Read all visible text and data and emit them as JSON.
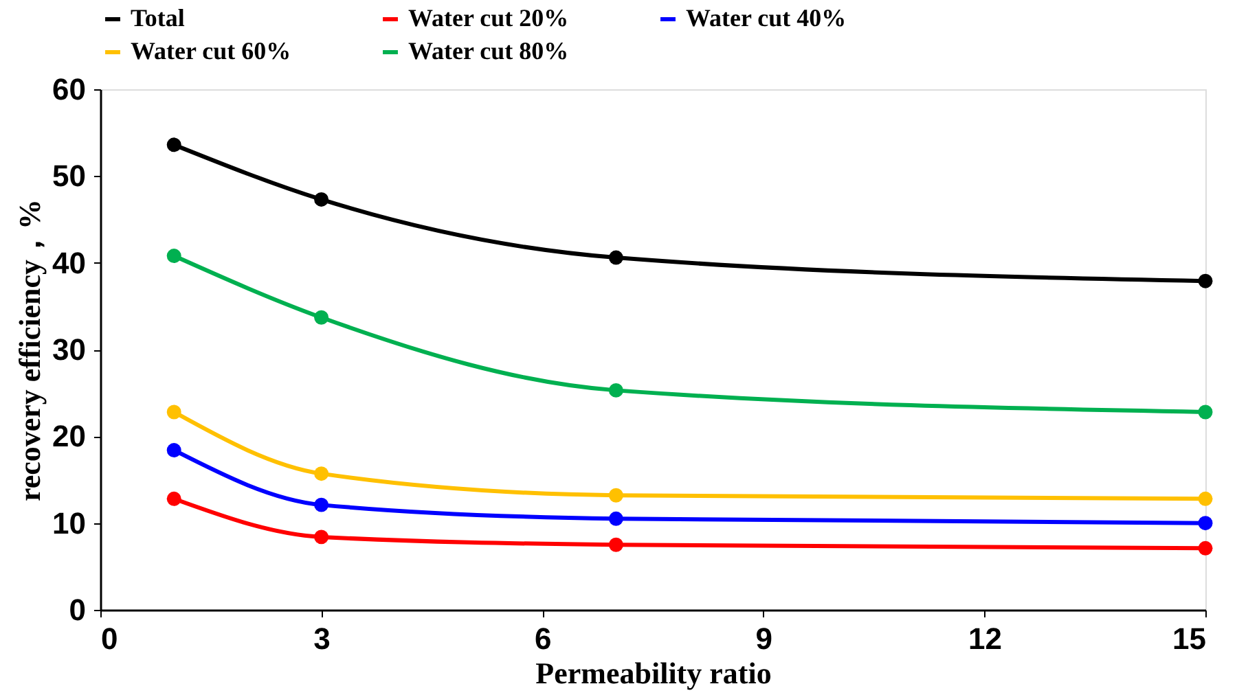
{
  "chart_data": {
    "type": "line",
    "xlabel": "Permeability ratio",
    "ylabel": "recovery efficiency，%",
    "x": [
      1,
      3,
      7,
      15
    ],
    "series": [
      {
        "name": "Total",
        "color": "#000000",
        "values": [
          53.6,
          47.3,
          40.6,
          37.9
        ]
      },
      {
        "name": "Water cut 20%",
        "color": "#ff0000",
        "values": [
          12.8,
          8.4,
          7.5,
          7.1
        ]
      },
      {
        "name": "Water cut 40%",
        "color": "#0000ff",
        "values": [
          18.4,
          12.1,
          10.5,
          10.0
        ]
      },
      {
        "name": "Water cut 60%",
        "color": "#ffc000",
        "values": [
          22.8,
          15.7,
          13.2,
          12.8
        ]
      },
      {
        "name": "Water cut 80%",
        "color": "#00b050",
        "values": [
          40.8,
          33.7,
          25.3,
          22.8
        ]
      }
    ],
    "xlim": [
      0,
      15
    ],
    "xticks": [
      0,
      3,
      6,
      9,
      12,
      15
    ],
    "ylim": [
      0,
      60
    ],
    "yticks": [
      0,
      10,
      20,
      30,
      40,
      50,
      60
    ],
    "grid": false,
    "legend": "top",
    "marker": "circle",
    "line_style": "solid"
  }
}
